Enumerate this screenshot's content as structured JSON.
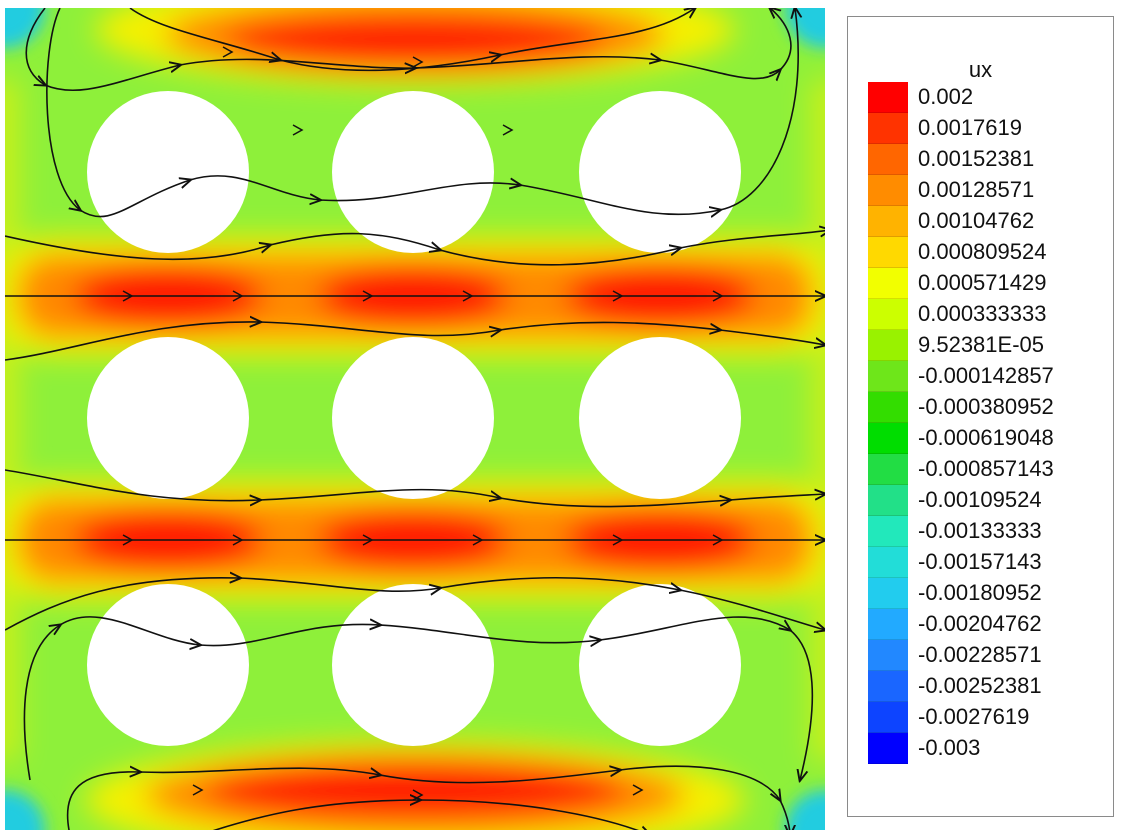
{
  "legend": {
    "title": "ux",
    "labels": [
      "0.002",
      "0.0017619",
      "0.00152381",
      "0.00128571",
      "0.00104762",
      "0.000809524",
      "0.000571429",
      "0.000333333",
      "9.52381E-05",
      "-0.000142857",
      "-0.000380952",
      "-0.000619048",
      "-0.000857143",
      "-0.00109524",
      "-0.00133333",
      "-0.00157143",
      "-0.00180952",
      "-0.00204762",
      "-0.00228571",
      "-0.00252381",
      "-0.0027619",
      "-0.003"
    ],
    "colors": [
      "#ff0000",
      "#ff3300",
      "#ff6600",
      "#ff8c00",
      "#ffb300",
      "#ffd900",
      "#f2ff00",
      "#ccff00",
      "#99f200",
      "#6ee61a",
      "#33dd00",
      "#00dd00",
      "#22dd44",
      "#22e088",
      "#22e8bb",
      "#22ddd8",
      "#22ccee",
      "#22aaff",
      "#2288ff",
      "#1a66ff",
      "#0d44ff",
      "#0000ff"
    ]
  },
  "plot": {
    "field_colors": {
      "background": "#8ef03a",
      "warm": "#ff1a00",
      "orange": "#ff8a00",
      "yellow": "#f5f000",
      "cyan": "#22cce0",
      "hole": "#ffffff"
    },
    "icons": {
      "streamline": "arrow-streamline-icon"
    }
  }
}
